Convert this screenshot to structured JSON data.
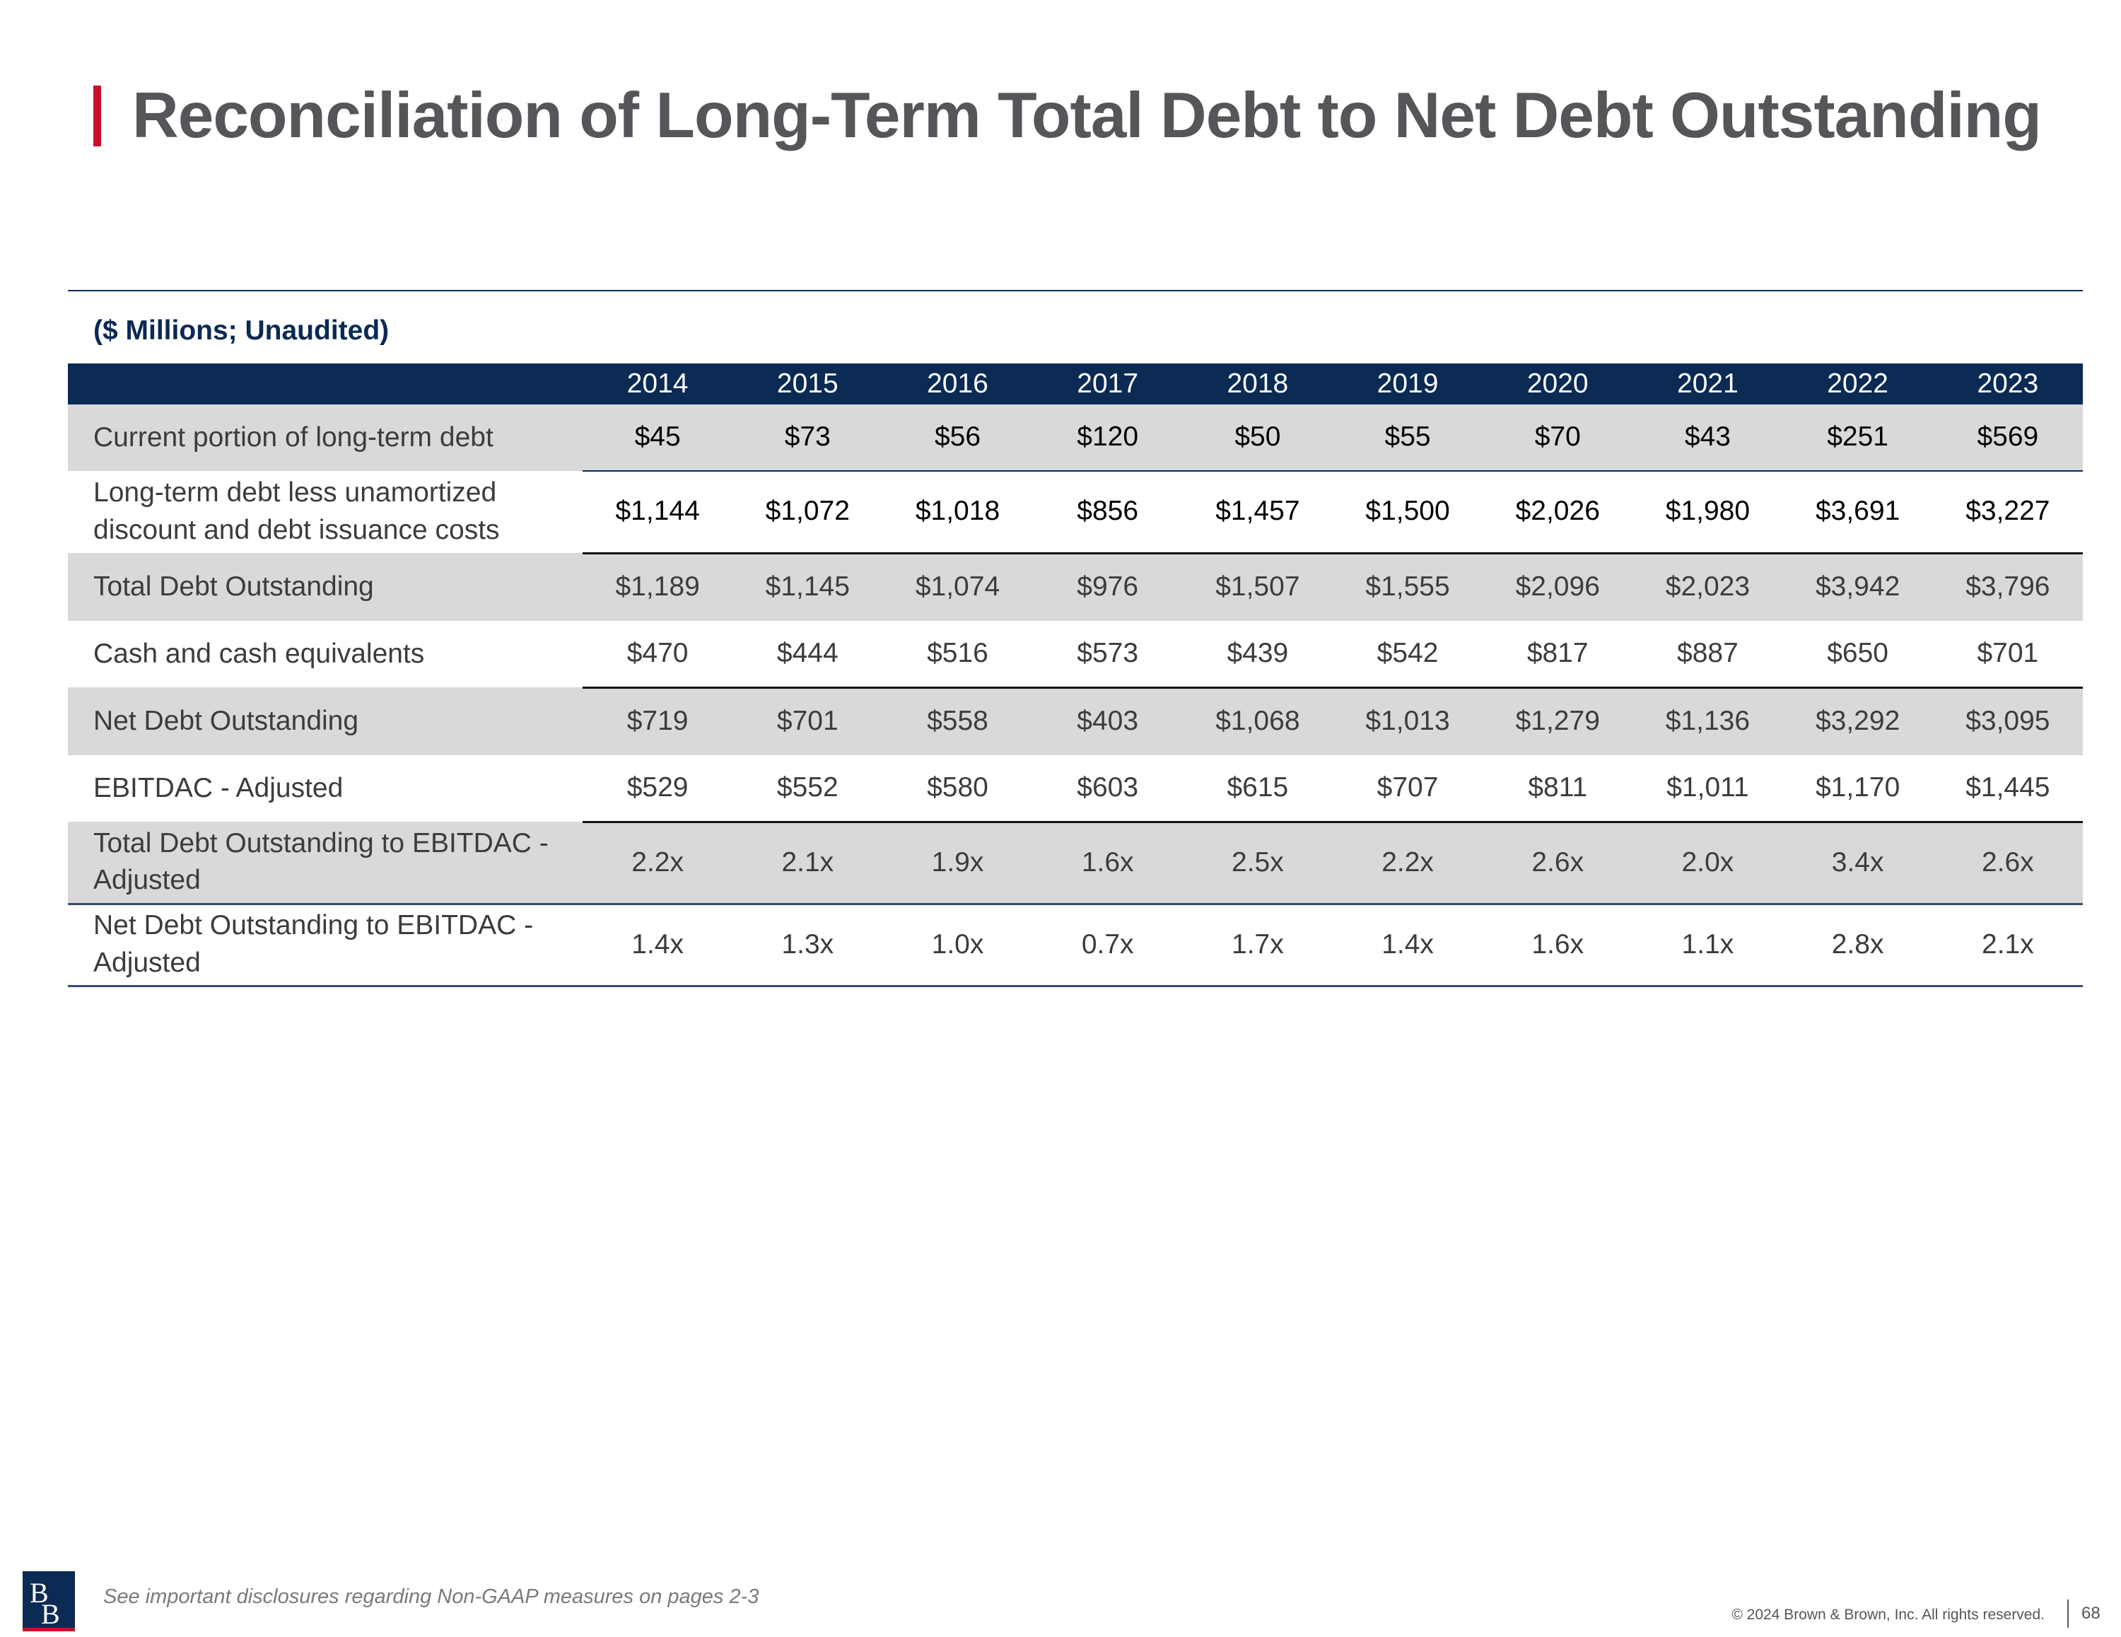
{
  "title": "Reconciliation of Long-Term Total Debt to Net Debt Outstanding",
  "units": "($ Millions; Unaudited)",
  "table": {
    "years": [
      "2014",
      "2015",
      "2016",
      "2017",
      "2018",
      "2019",
      "2020",
      "2021",
      "2022",
      "2023"
    ],
    "rows": [
      {
        "label": "Current portion of long-term debt",
        "values": [
          "$45",
          "$73",
          "$56",
          "$120",
          "$50",
          "$55",
          "$70",
          "$43",
          "$251",
          "$569"
        ]
      },
      {
        "label": "Long-term debt less unamortized discount and debt issuance costs",
        "values": [
          "$1,144",
          "$1,072",
          "$1,018",
          "$856",
          "$1,457",
          "$1,500",
          "$2,026",
          "$1,980",
          "$3,691",
          "$3,227"
        ]
      },
      {
        "label": "Total Debt Outstanding",
        "values": [
          "$1,189",
          "$1,145",
          "$1,074",
          "$976",
          "$1,507",
          "$1,555",
          "$2,096",
          "$2,023",
          "$3,942",
          "$3,796"
        ]
      },
      {
        "label": "Cash and cash equivalents",
        "values": [
          "$470",
          "$444",
          "$516",
          "$573",
          "$439",
          "$542",
          "$817",
          "$887",
          "$650",
          "$701"
        ]
      },
      {
        "label": "Net Debt Outstanding",
        "values": [
          "$719",
          "$701",
          "$558",
          "$403",
          "$1,068",
          "$1,013",
          "$1,279",
          "$1,136",
          "$3,292",
          "$3,095"
        ]
      },
      {
        "label": "EBITDAC - Adjusted",
        "values": [
          "$529",
          "$552",
          "$580",
          "$603",
          "$615",
          "$707",
          "$811",
          "$1,011",
          "$1,170",
          "$1,445"
        ]
      },
      {
        "label": "Total Debt Outstanding to EBITDAC - Adjusted",
        "values": [
          "2.2x",
          "2.1x",
          "1.9x",
          "1.6x",
          "2.5x",
          "2.2x",
          "2.6x",
          "2.0x",
          "3.4x",
          "2.6x"
        ]
      },
      {
        "label": "Net Debt Outstanding to EBITDAC - Adjusted",
        "values": [
          "1.4x",
          "1.3x",
          "1.0x",
          "0.7x",
          "1.7x",
          "1.4x",
          "1.6x",
          "1.1x",
          "2.8x",
          "2.1x"
        ]
      }
    ]
  },
  "footer": {
    "logo_text": "BB",
    "disclosure": "See important disclosures regarding Non-GAAP measures on pages 2-3",
    "copyright": "© 2024 Brown & Brown, Inc. All rights reserved.",
    "page_number": "68"
  },
  "colors": {
    "navy": "#0b2a54",
    "accent_red": "#c8102e",
    "title_gray": "#54565a",
    "row_shade": "#d9d9d9"
  }
}
